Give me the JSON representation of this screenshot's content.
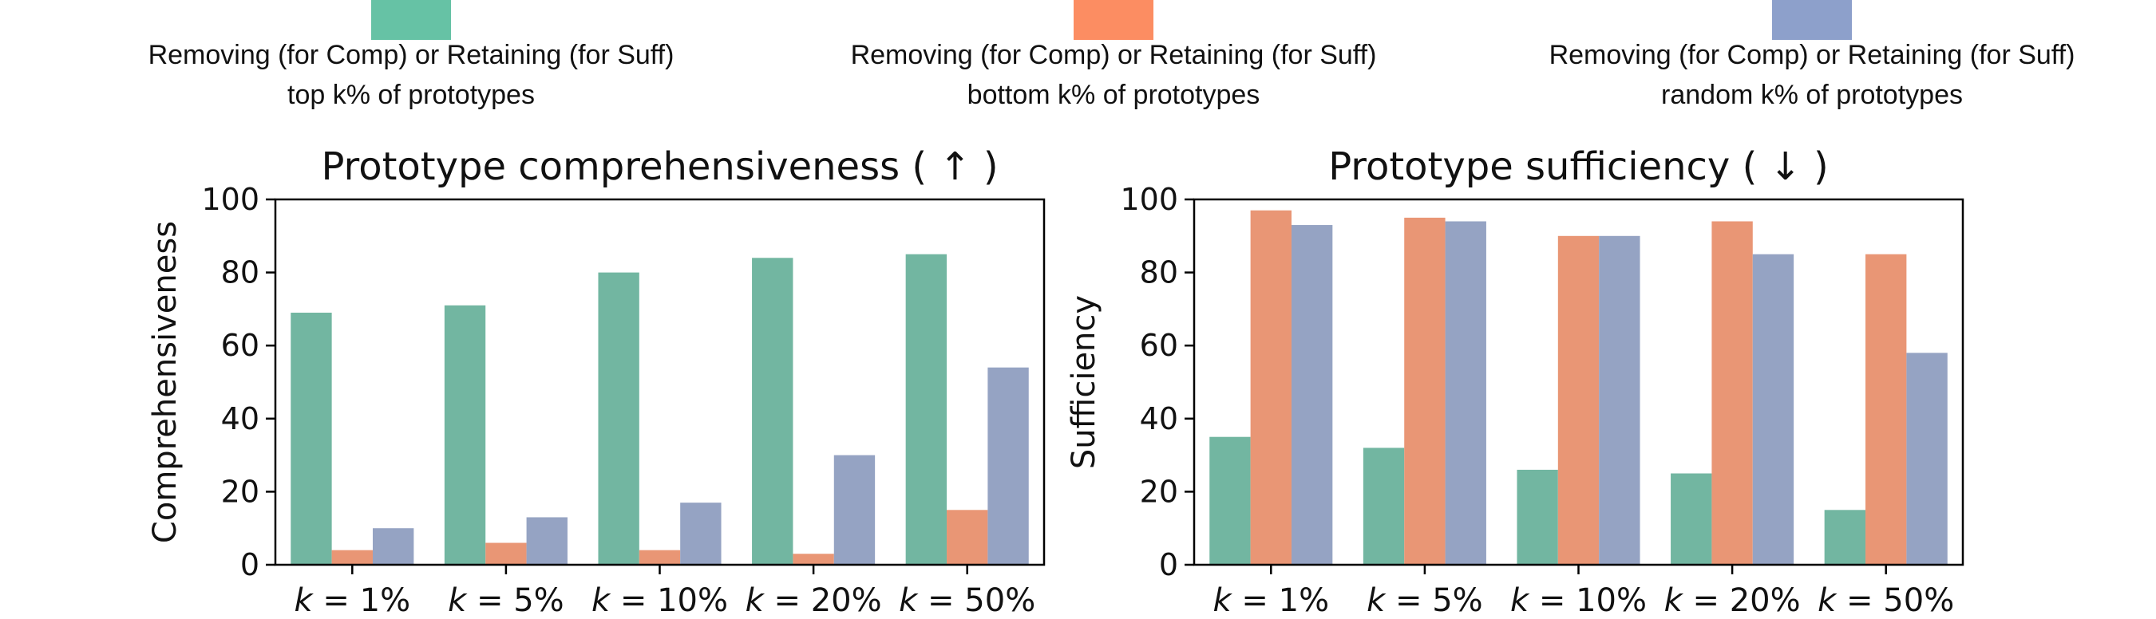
{
  "legend": {
    "entries": [
      {
        "line1": "Removing (for Comp) or Retaining (for Suff)",
        "line2": "top k% of prototypes",
        "color": "#66c2a5"
      },
      {
        "line1": "Removing (for Comp) or Retaining (for Suff)",
        "line2": "bottom k% of prototypes",
        "color": "#fc8d62"
      },
      {
        "line1": "Removing (for Comp) or Retaining (for Suff)",
        "line2": "random k% of prototypes",
        "color": "#8da0cb"
      }
    ]
  },
  "chart_data": [
    {
      "type": "bar",
      "title": "Prototype comprehensiveness ( ↑ )",
      "xlabel": "",
      "ylabel": "Comprehensiveness",
      "categories": [
        "k = 1%",
        "k = 5%",
        "k = 10%",
        "k = 20%",
        "k = 50%"
      ],
      "ylim": [
        0,
        100
      ],
      "yticks": [
        0,
        20,
        40,
        60,
        80,
        100
      ],
      "grid": false,
      "series": [
        {
          "values": [
            69,
            71,
            80,
            84,
            85
          ],
          "color": "#72b6a1"
        },
        {
          "values": [
            4,
            6,
            4,
            3,
            15
          ],
          "color": "#e99675"
        },
        {
          "values": [
            10,
            13,
            17,
            30,
            54
          ],
          "color": "#95a3c3"
        }
      ]
    },
    {
      "type": "bar",
      "title": "Prototype sufficiency ( ↓ )",
      "xlabel": "",
      "ylabel": "Sufficiency",
      "categories": [
        "k = 1%",
        "k = 5%",
        "k = 10%",
        "k = 20%",
        "k = 50%"
      ],
      "ylim": [
        0,
        100
      ],
      "yticks": [
        0,
        20,
        40,
        60,
        80,
        100
      ],
      "grid": false,
      "series": [
        {
          "values": [
            35,
            32,
            26,
            25,
            15
          ],
          "color": "#72b6a1"
        },
        {
          "values": [
            97,
            95,
            90,
            94,
            85
          ],
          "color": "#e99675"
        },
        {
          "values": [
            93,
            94,
            90,
            85,
            58
          ],
          "color": "#95a3c3"
        }
      ]
    }
  ]
}
